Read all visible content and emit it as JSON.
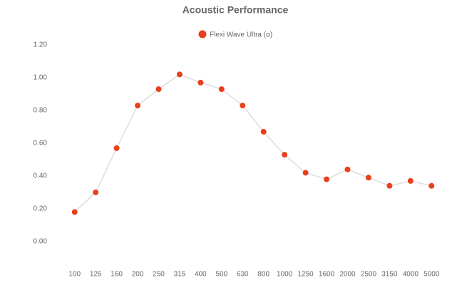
{
  "chart_data": {
    "type": "line",
    "title": "Acoustic Performance",
    "categories": [
      "100",
      "125",
      "160",
      "200",
      "250",
      "315",
      "400",
      "500",
      "630",
      "800",
      "1000",
      "1250",
      "1600",
      "2000",
      "2500",
      "3150",
      "4000",
      "5000"
    ],
    "series": [
      {
        "name": "Flexi Wave Ultra (α)",
        "color": "#e8401c",
        "values": [
          0.18,
          0.3,
          0.57,
          0.83,
          0.93,
          1.02,
          0.97,
          0.93,
          0.83,
          0.67,
          0.53,
          0.42,
          0.38,
          0.44,
          0.39,
          0.34,
          0.37,
          0.34
        ]
      }
    ],
    "line_color": "#dddddd",
    "ylim": [
      0,
      1.2
    ],
    "yticks": [
      {
        "value": 0,
        "label": "0.00"
      },
      {
        "value": 0.2,
        "label": "0.20"
      },
      {
        "value": 0.4,
        "label": "0.40"
      },
      {
        "value": 0.6,
        "label": "0.60"
      },
      {
        "value": 0.8,
        "label": "0.80"
      },
      {
        "value": 1,
        "label": "1.00"
      },
      {
        "value": 1.2,
        "label": "1.20"
      }
    ],
    "grid": false,
    "legend": "top"
  }
}
